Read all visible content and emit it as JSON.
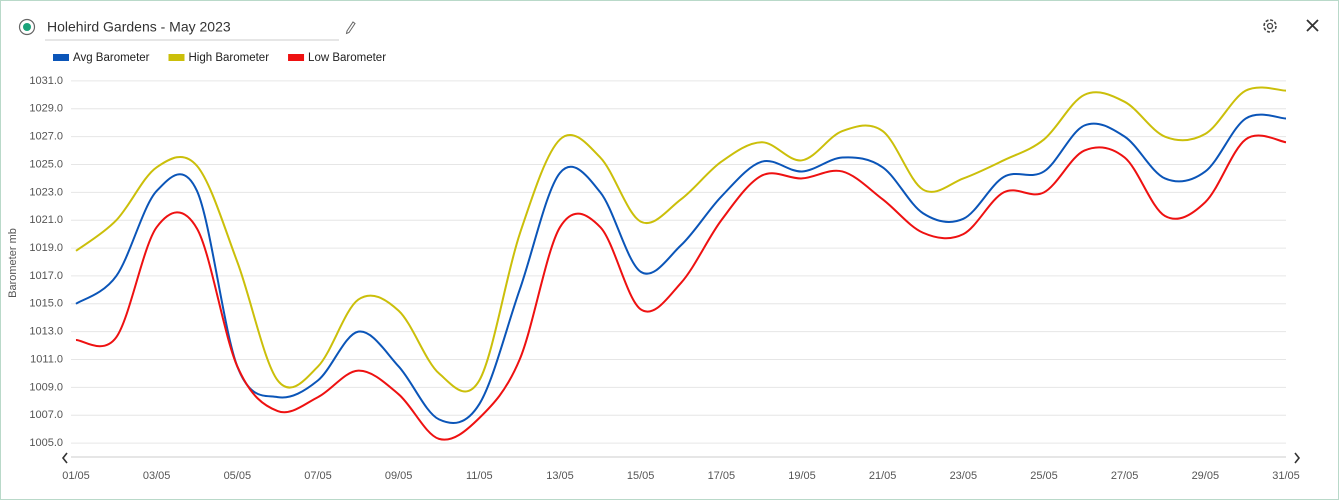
{
  "chart_data": {
    "type": "line",
    "title": "Holehird Gardens - May 2023",
    "y_label": "Barometer mb",
    "categories": [
      "01/05",
      null,
      "03/05",
      null,
      "05/05",
      null,
      "07/05",
      null,
      "09/05",
      null,
      "11/05",
      null,
      "13/05",
      null,
      "15/05",
      null,
      "17/05",
      null,
      "19/05",
      null,
      "21/05",
      null,
      "23/05",
      null,
      "25/05",
      null,
      "27/05",
      null,
      "29/05",
      null,
      "31/05"
    ],
    "series": [
      {
        "name": "Avg Barometer",
        "color": "#0b55b8",
        "values": [
          1015.0,
          1017.0,
          1023.1,
          1023.1,
          1010.5,
          1008.3,
          1009.5,
          1013.0,
          1010.5,
          1006.7,
          1007.8,
          1016.0,
          1024.4,
          1023.0,
          1017.3,
          1019.2,
          1022.7,
          1025.2,
          1024.5,
          1025.5,
          1024.8,
          1021.5,
          1021.1,
          1024.1,
          1024.5,
          1027.8,
          1027.0,
          1024.0,
          1024.5,
          1028.3,
          1028.3
        ]
      },
      {
        "name": "High Barometer",
        "color": "#cbbf0a",
        "values": [
          1018.8,
          1021.0,
          1024.8,
          1024.9,
          1018.0,
          1009.5,
          1010.5,
          1015.3,
          1014.5,
          1010.0,
          1009.5,
          1020.0,
          1026.8,
          1025.5,
          1020.9,
          1022.5,
          1025.2,
          1026.6,
          1025.3,
          1027.4,
          1027.4,
          1023.2,
          1024.0,
          1025.3,
          1026.8,
          1030.0,
          1029.5,
          1027.0,
          1027.2,
          1030.3,
          1030.3
        ]
      },
      {
        "name": "Low Barometer",
        "color": "#ee1111",
        "values": [
          1012.4,
          1012.6,
          1020.5,
          1020.4,
          1010.5,
          1007.3,
          1008.3,
          1010.2,
          1008.5,
          1005.3,
          1006.8,
          1011.0,
          1020.5,
          1020.5,
          1014.6,
          1016.5,
          1021.0,
          1024.2,
          1024.0,
          1024.5,
          1022.5,
          1020.1,
          1020.0,
          1023.0,
          1023.0,
          1026.0,
          1025.5,
          1021.3,
          1022.3,
          1026.8,
          1026.6
        ]
      }
    ],
    "ylim": [
      1004,
      1032
    ],
    "yticks": [
      {
        "value": 1005,
        "label": "1005.0"
      },
      {
        "value": 1007,
        "label": "1007.0"
      },
      {
        "value": 1009,
        "label": "1009.0"
      },
      {
        "value": 1011,
        "label": "1011.0"
      },
      {
        "value": 1013,
        "label": "1013.0"
      },
      {
        "value": 1015,
        "label": "1015.0"
      },
      {
        "value": 1017,
        "label": "1017.0"
      },
      {
        "value": 1019,
        "label": "1019.0"
      },
      {
        "value": 1021,
        "label": "1021.0"
      },
      {
        "value": 1023,
        "label": "1023.0"
      },
      {
        "value": 1025,
        "label": "1025.0"
      },
      {
        "value": 1027,
        "label": "1027.0"
      },
      {
        "value": 1029,
        "label": "1029.0"
      },
      {
        "value": 1031,
        "label": "1031.0"
      }
    ],
    "grid": true
  }
}
